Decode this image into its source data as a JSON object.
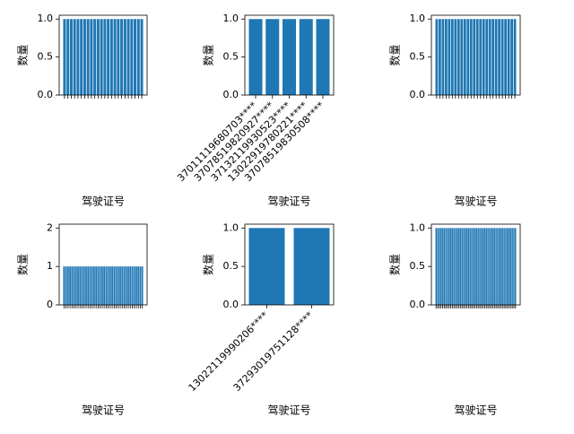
{
  "chart_data": [
    {
      "type": "bar",
      "xlabel": "驾驶证号",
      "ylabel": "数量",
      "color": "#1f77b4",
      "categories": [
        null,
        null,
        null,
        null,
        null,
        null,
        null,
        null,
        null,
        null,
        null,
        null,
        null,
        null,
        null,
        null,
        null,
        null,
        null,
        null,
        null,
        null,
        null,
        null
      ],
      "values": [
        1,
        1,
        1,
        1,
        1,
        1,
        1,
        1,
        1,
        1,
        1,
        1,
        1,
        1,
        1,
        1,
        1,
        1,
        1,
        1,
        1,
        1,
        1,
        1
      ],
      "ylim": [
        0,
        1.05
      ],
      "yticks": [
        {
          "value": 0,
          "label": "0.0"
        },
        0.5,
        {
          "value": 1,
          "label": "1.0"
        }
      ]
    },
    {
      "type": "bar",
      "xlabel": "驾驶证号",
      "ylabel": "数量",
      "color": "#1f77b4",
      "categories": [
        "37011119680703****",
        "37078519820927****",
        "37132119930523****",
        "13022919780221****",
        "37078519830508****"
      ],
      "values": [
        1,
        1,
        1,
        1,
        1
      ],
      "ylim": [
        0,
        1.05
      ],
      "yticks": [
        {
          "value": 0,
          "label": "0.0"
        },
        0.5,
        {
          "value": 1,
          "label": "1.0"
        }
      ]
    },
    {
      "type": "bar",
      "xlabel": "驾驶证号",
      "ylabel": "数量",
      "color": "#1f77b4",
      "categories": [
        null,
        null,
        null,
        null,
        null,
        null,
        null,
        null,
        null,
        null,
        null,
        null,
        null,
        null,
        null,
        null,
        null,
        null,
        null,
        null,
        null,
        null,
        null,
        null,
        null,
        null
      ],
      "values": [
        1,
        1,
        1,
        1,
        1,
        1,
        1,
        1,
        1,
        1,
        1,
        1,
        1,
        1,
        1,
        1,
        1,
        1,
        1,
        1,
        1,
        1,
        1,
        1,
        1,
        1
      ],
      "ylim": [
        0,
        1.05
      ],
      "yticks": [
        {
          "value": 0,
          "label": "0.0"
        },
        0.5,
        {
          "value": 1,
          "label": "1.0"
        }
      ]
    },
    {
      "type": "bar",
      "xlabel": "驾驶证号",
      "ylabel": "数量",
      "color": "#1f77b4",
      "categories": [
        null,
        null,
        null,
        null,
        null,
        null,
        null,
        null,
        null,
        null,
        null,
        null,
        null,
        null,
        null,
        null,
        null,
        null,
        null,
        null,
        null,
        null,
        null,
        null,
        null,
        null,
        null,
        null,
        null,
        null,
        null,
        null,
        null,
        null,
        null,
        null,
        null,
        null,
        null,
        null
      ],
      "values": [
        1,
        1,
        1,
        1,
        1,
        1,
        1,
        1,
        1,
        1,
        1,
        1,
        1,
        1,
        1,
        1,
        1,
        1,
        1,
        1,
        1,
        1,
        1,
        1,
        1,
        1,
        1,
        1,
        1,
        1,
        1,
        1,
        1,
        1,
        1,
        1,
        1,
        1,
        1,
        1
      ],
      "ylim": [
        0,
        2.1
      ],
      "yticks": [
        0,
        1,
        2
      ]
    },
    {
      "type": "bar",
      "xlabel": "驾驶证号",
      "ylabel": "数量",
      "color": "#1f77b4",
      "categories": [
        "13022119990206****",
        "37293019751128****"
      ],
      "values": [
        1,
        1
      ],
      "ylim": [
        0,
        1.05
      ],
      "yticks": [
        {
          "value": 0,
          "label": "0.0"
        },
        0.5,
        {
          "value": 1,
          "label": "1.0"
        }
      ]
    },
    {
      "type": "bar",
      "xlabel": "驾驶证号",
      "ylabel": "数量",
      "color": "#1f77b4",
      "categories": [
        null,
        null,
        null,
        null,
        null,
        null,
        null,
        null,
        null,
        null,
        null,
        null,
        null,
        null,
        null,
        null,
        null,
        null,
        null,
        null,
        null,
        null,
        null,
        null,
        null,
        null,
        null,
        null,
        null,
        null,
        null,
        null,
        null,
        null,
        null,
        null,
        null,
        null,
        null,
        null,
        null,
        null,
        null,
        null,
        null,
        null,
        null,
        null,
        null,
        null
      ],
      "values": [
        1,
        1,
        1,
        1,
        1,
        1,
        1,
        1,
        1,
        1,
        1,
        1,
        1,
        1,
        1,
        1,
        1,
        1,
        1,
        1,
        1,
        1,
        1,
        1,
        1,
        1,
        1,
        1,
        1,
        1,
        1,
        1,
        1,
        1,
        1,
        1,
        1,
        1,
        1,
        1,
        1,
        1,
        1,
        1,
        1,
        1,
        1,
        1,
        1,
        1
      ],
      "ylim": [
        0,
        1.05
      ],
      "yticks": [
        {
          "value": 0,
          "label": "0.0"
        },
        0.5,
        {
          "value": 1,
          "label": "1.0"
        }
      ]
    }
  ]
}
